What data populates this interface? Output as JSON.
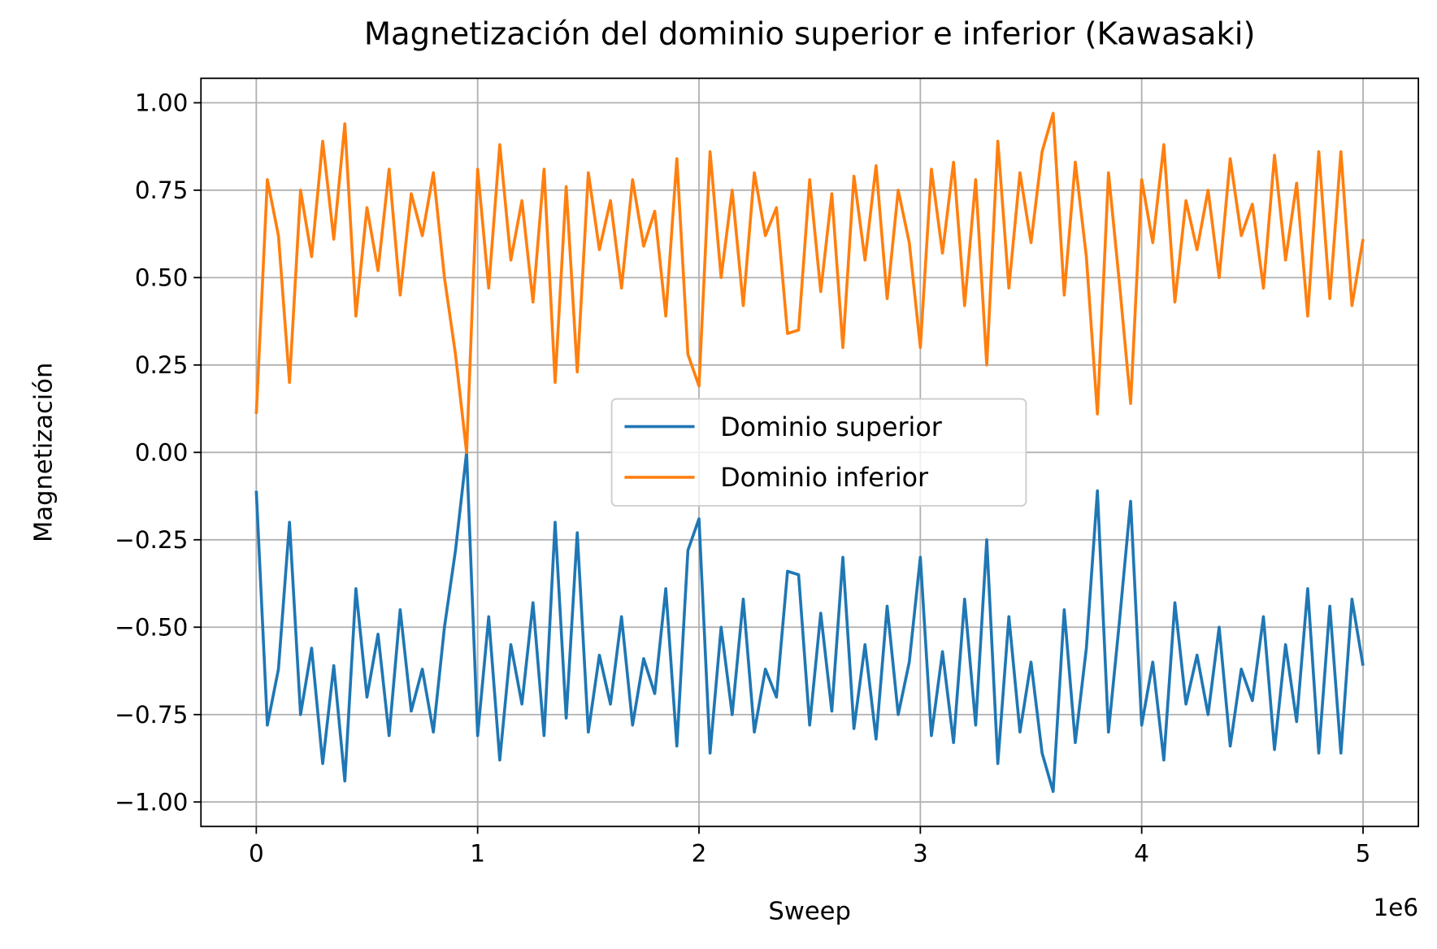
{
  "chart_data": {
    "type": "line",
    "title": "Magnetización del dominio superior e inferior (Kawasaki)",
    "xlabel": "Sweep",
    "ylabel": "Magnetización",
    "x_offset_label": "1e6",
    "x": [
      0,
      50000,
      100000,
      150000,
      200000,
      250000,
      300000,
      350000,
      400000,
      450000,
      500000,
      550000,
      600000,
      650000,
      700000,
      750000,
      800000,
      850000,
      900000,
      950000,
      1000000,
      1050000,
      1100000,
      1150000,
      1200000,
      1250000,
      1300000,
      1350000,
      1400000,
      1450000,
      1500000,
      1550000,
      1600000,
      1650000,
      1700000,
      1750000,
      1800000,
      1850000,
      1900000,
      1950000,
      2000000,
      2050000,
      2100000,
      2150000,
      2200000,
      2250000,
      2300000,
      2350000,
      2400000,
      2450000,
      2500000,
      2550000,
      2600000,
      2650000,
      2700000,
      2750000,
      2800000,
      2850000,
      2900000,
      2950000,
      3000000,
      3050000,
      3100000,
      3150000,
      3200000,
      3250000,
      3300000,
      3350000,
      3400000,
      3450000,
      3500000,
      3550000,
      3600000,
      3650000,
      3700000,
      3750000,
      3800000,
      3850000,
      3900000,
      3950000,
      4000000,
      4050000,
      4100000,
      4150000,
      4200000,
      4250000,
      4300000,
      4350000,
      4400000,
      4450000,
      4500000,
      4550000,
      4600000,
      4650000,
      4700000,
      4750000,
      4800000,
      4850000,
      4900000,
      4950000,
      5000000
    ],
    "series": [
      {
        "name": "Dominio superior",
        "color": "#1f77b4",
        "values": [
          -0.11,
          -0.78,
          -0.62,
          -0.2,
          -0.75,
          -0.56,
          -0.89,
          -0.61,
          -0.94,
          -0.39,
          -0.7,
          -0.52,
          -0.81,
          -0.45,
          -0.74,
          -0.62,
          -0.8,
          -0.5,
          -0.28,
          0.0,
          -0.81,
          -0.47,
          -0.88,
          -0.55,
          -0.72,
          -0.43,
          -0.81,
          -0.2,
          -0.76,
          -0.23,
          -0.8,
          -0.58,
          -0.72,
          -0.47,
          -0.78,
          -0.59,
          -0.69,
          -0.39,
          -0.84,
          -0.28,
          -0.19,
          -0.86,
          -0.5,
          -0.75,
          -0.42,
          -0.8,
          -0.62,
          -0.7,
          -0.34,
          -0.35,
          -0.78,
          -0.46,
          -0.74,
          -0.3,
          -0.79,
          -0.55,
          -0.82,
          -0.44,
          -0.75,
          -0.6,
          -0.3,
          -0.81,
          -0.57,
          -0.83,
          -0.42,
          -0.78,
          -0.25,
          -0.89,
          -0.47,
          -0.8,
          -0.6,
          -0.86,
          -0.97,
          -0.45,
          -0.83,
          -0.56,
          -0.11,
          -0.8,
          -0.48,
          -0.14,
          -0.78,
          -0.6,
          -0.88,
          -0.43,
          -0.72,
          -0.58,
          -0.75,
          -0.5,
          -0.84,
          -0.62,
          -0.71,
          -0.47,
          -0.85,
          -0.55,
          -0.77,
          -0.39,
          -0.86,
          -0.44,
          -0.86,
          -0.42,
          -0.61
        ]
      },
      {
        "name": "Dominio inferior",
        "color": "#ff7f0e",
        "values": [
          0.11,
          0.78,
          0.62,
          0.2,
          0.75,
          0.56,
          0.89,
          0.61,
          0.94,
          0.39,
          0.7,
          0.52,
          0.81,
          0.45,
          0.74,
          0.62,
          0.8,
          0.5,
          0.28,
          0.0,
          0.81,
          0.47,
          0.88,
          0.55,
          0.72,
          0.43,
          0.81,
          0.2,
          0.76,
          0.23,
          0.8,
          0.58,
          0.72,
          0.47,
          0.78,
          0.59,
          0.69,
          0.39,
          0.84,
          0.28,
          0.19,
          0.86,
          0.5,
          0.75,
          0.42,
          0.8,
          0.62,
          0.7,
          0.34,
          0.35,
          0.78,
          0.46,
          0.74,
          0.3,
          0.79,
          0.55,
          0.82,
          0.44,
          0.75,
          0.6,
          0.3,
          0.81,
          0.57,
          0.83,
          0.42,
          0.78,
          0.25,
          0.89,
          0.47,
          0.8,
          0.6,
          0.86,
          0.97,
          0.45,
          0.83,
          0.56,
          0.11,
          0.8,
          0.48,
          0.14,
          0.78,
          0.6,
          0.88,
          0.43,
          0.72,
          0.58,
          0.75,
          0.5,
          0.84,
          0.62,
          0.71,
          0.47,
          0.85,
          0.55,
          0.77,
          0.39,
          0.86,
          0.44,
          0.86,
          0.42,
          0.61
        ]
      }
    ],
    "xlim": [
      -250000,
      5250000
    ],
    "xticks": [
      0,
      {
        "value": 1000000,
        "label": "1"
      },
      {
        "value": 2000000,
        "label": "2"
      },
      {
        "value": 3000000,
        "label": "3"
      },
      {
        "value": 4000000,
        "label": "4"
      },
      {
        "value": 5000000,
        "label": "5"
      }
    ],
    "ylim": [
      -1.07,
      1.07
    ],
    "yticks": [
      {
        "value": -1,
        "label": "−1.00"
      },
      {
        "value": -0.75,
        "label": "−0.75"
      },
      {
        "value": -0.5,
        "label": "−0.50"
      },
      {
        "value": -0.25,
        "label": "−0.25"
      },
      {
        "value": 0,
        "label": "0.00"
      },
      {
        "value": 0.25,
        "label": "0.25"
      },
      {
        "value": 0.5,
        "label": "0.50"
      },
      {
        "value": 0.75,
        "label": "0.75"
      },
      {
        "value": 1,
        "label": "1.00"
      }
    ],
    "grid": true,
    "legend": "center"
  }
}
